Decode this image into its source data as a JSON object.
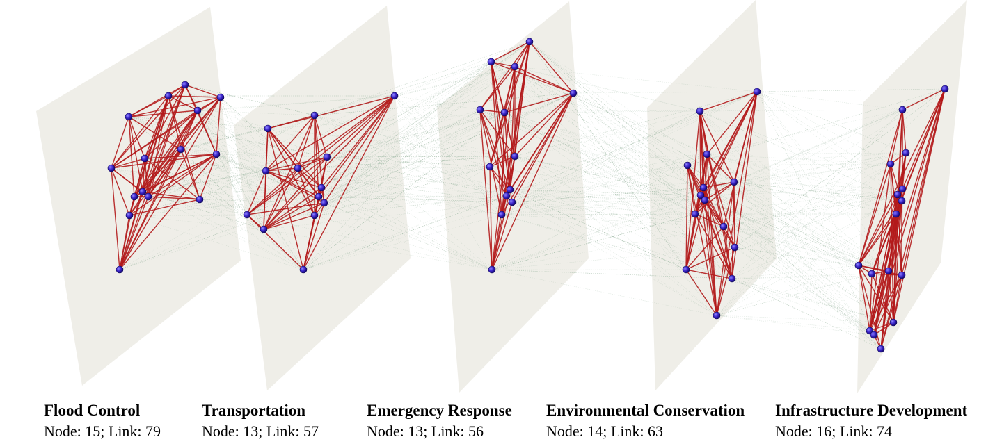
{
  "colors": {
    "plane": "#ebeae3",
    "intra_link": "#b3191b",
    "inter_link": "#9fb6a4",
    "node": "#3b24c9"
  },
  "layers": [
    {
      "title": "Flood Control",
      "stats": "Node: 15; Link: 79",
      "nodes": 15,
      "links": 79
    },
    {
      "title": "Transportation",
      "stats": "Node: 13; Link: 57",
      "nodes": 13,
      "links": 57
    },
    {
      "title": "Emergency Response",
      "stats": "Node: 13; Link: 56",
      "nodes": 13,
      "links": 56
    },
    {
      "title": "Environmental Conservation",
      "stats": "Node: 14; Link: 63",
      "nodes": 14,
      "links": 63
    },
    {
      "title": "Infrastructure Development",
      "stats": "Node: 16; Link: 74",
      "nodes": 16,
      "links": 74
    }
  ]
}
